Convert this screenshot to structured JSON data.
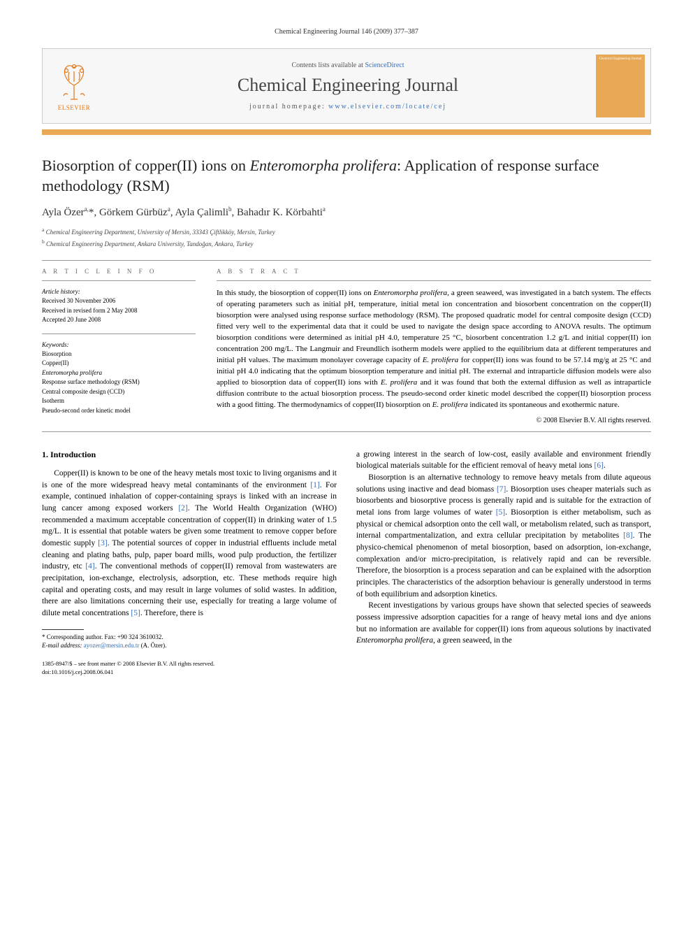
{
  "running_header": "Chemical Engineering Journal 146 (2009) 377–387",
  "header": {
    "contents_prefix": "Contents lists available at ",
    "contents_link": "ScienceDirect",
    "journal_title": "Chemical Engineering Journal",
    "homepage_prefix": "journal homepage: ",
    "homepage_link": "www.elsevier.com/locate/cej",
    "publisher_label": "ELSEVIER",
    "cover_text": "Chemical Engineering Journal"
  },
  "title_html": "Biosorption of copper(II) ions on <em>Enteromorpha prolifera</em>: Application of response surface methodology (RSM)",
  "authors_html": "Ayla Özer<sup>a,</sup>*, Görkem Gürbüz<sup>a</sup>, Ayla Çalimli<sup>b</sup>, Bahadır K. Körbahti<sup>a</sup>",
  "affiliations": [
    {
      "sup": "a",
      "text": "Chemical Engineering Department, University of Mersin, 33343 Çiftlikköy, Mersin, Turkey"
    },
    {
      "sup": "b",
      "text": "Chemical Engineering Department, Ankara University, Tandoğan, Ankara, Turkey"
    }
  ],
  "article_info": {
    "heading": "A R T I C L E  I N F O",
    "history_heading": "Article history:",
    "history": [
      "Received 30 November 2006",
      "Received in revised form 2 May 2008",
      "Accepted 20 June 2008"
    ],
    "keywords_heading": "Keywords:",
    "keywords": [
      "Biosorption",
      "Copper(II)",
      "Enteromorpha prolifera",
      "Response surface methodology (RSM)",
      "Central composite design (CCD)",
      "Isotherm",
      "Pseudo-second order kinetic model"
    ]
  },
  "abstract": {
    "heading": "A B S T R A C T",
    "text_html": "In this study, the biosorption of copper(II) ions on <em>Enteromorpha prolifera</em>, a green seaweed, was investigated in a batch system. The effects of operating parameters such as initial pH, temperature, initial metal ion concentration and biosorbent concentration on the copper(II) biosorption were analysed using response surface methodology (RSM). The proposed quadratic model for central composite design (CCD) fitted very well to the experimental data that it could be used to navigate the design space according to ANOVA results. The optimum biosorption conditions were determined as initial pH 4.0, temperature 25 °C, biosorbent concentration 1.2 g/L and initial copper(II) ion concentration 200 mg/L. The Langmuir and Freundlich isotherm models were applied to the equilibrium data at different temperatures and initial pH values. The maximum monolayer coverage capacity of <em>E. prolifera</em> for copper(II) ions was found to be 57.14 mg/g at 25 °C and initial pH 4.0 indicating that the optimum biosorption temperature and initial pH. The external and intraparticle diffusion models were also applied to biosorption data of copper(II) ions with <em>E. prolifera</em> and it was found that both the external diffusion as well as intraparticle diffusion contribute to the actual biosorption process. The pseudo-second order kinetic model described the copper(II) biosorption process with a good fitting. The thermodynamics of copper(II) biosorption on <em>E. prolifera</em> indicated its spontaneous and exothermic nature.",
    "copyright": "© 2008 Elsevier B.V. All rights reserved."
  },
  "body": {
    "section_number": "1.",
    "section_title": "Introduction",
    "col1_html": "Copper(II) is known to be one of the heavy metals most toxic to living organisms and it is one of the more widespread heavy metal contaminants of the environment <a class='ref-link' data-name='citation-link' data-interactable='true'>[1]</a>. For example, continued inhalation of copper-containing sprays is linked with an increase in lung cancer among exposed workers <a class='ref-link' data-name='citation-link' data-interactable='true'>[2]</a>. The World Health Organization (WHO) recommended a maximum acceptable concentration of copper(II) in drinking water of 1.5 mg/L. It is essential that potable waters be given some treatment to remove copper before domestic supply <a class='ref-link' data-name='citation-link' data-interactable='true'>[3]</a>. The potential sources of copper in industrial effluents include metal cleaning and plating baths, pulp, paper board mills, wood pulp production, the fertilizer industry, etc <a class='ref-link' data-name='citation-link' data-interactable='true'>[4]</a>. The conventional methods of copper(II) removal from wastewaters are precipitation, ion-exchange, electrolysis, adsorption, etc. These methods require high capital and operating costs, and may result in large volumes of solid wastes. In addition, there are also limitations concerning their use, especially for treating a large volume of dilute metal concentrations <a class='ref-link' data-name='citation-link' data-interactable='true'>[5]</a>. Therefore, there is",
    "col2_p1_html": "a growing interest in the search of low-cost, easily available and environment friendly biological materials suitable for the efficient removal of heavy metal ions <a class='ref-link' data-name='citation-link' data-interactable='true'>[6]</a>.",
    "col2_p2_html": "Biosorption is an alternative technology to remove heavy metals from dilute aqueous solutions using inactive and dead biomass <a class='ref-link' data-name='citation-link' data-interactable='true'>[7]</a>. Biosorption uses cheaper materials such as biosorbents and biosorptive process is generally rapid and is suitable for the extraction of metal ions from large volumes of water <a class='ref-link' data-name='citation-link' data-interactable='true'>[5]</a>. Biosorption is either metabolism, such as physical or chemical adsorption onto the cell wall, or metabolism related, such as transport, internal compartmentalization, and extra cellular precipitation by metabolites <a class='ref-link' data-name='citation-link' data-interactable='true'>[8]</a>. The physico-chemical phenomenon of metal biosorption, based on adsorption, ion-exchange, complexation and/or micro-precipitation, is relatively rapid and can be reversible. Therefore, the biosorption is a process separation and can be explained with the adsorption principles. The characteristics of the adsorption behaviour is generally understood in terms of both equilibrium and adsorption kinetics.",
    "col2_p3_html": "Recent investigations by various groups have shown that selected species of seaweeds possess impressive adsorption capacities for a range of heavy metal ions and dye anions but no information are available for copper(II) ions from aqueous solutions by inactivated <em>Enteromorpha prolifera</em>, a green seaweed, in the"
  },
  "footnote": {
    "corr": "* Corresponding author. Fax: +90 324 3610032.",
    "email_label": "E-mail address: ",
    "email": "ayozer@mersin.edu.tr",
    "email_suffix": " (A. Özer)."
  },
  "footer": {
    "line1": "1385-8947/$ – see front matter © 2008 Elsevier B.V. All rights reserved.",
    "line2": "doi:10.1016/j.cej.2008.06.041"
  },
  "colors": {
    "orange": "#e8a855",
    "elsevier_orange": "#e67817",
    "link_blue": "#3a6fb7",
    "border_gray": "#cccccc",
    "bg_gray": "#f7f7f7"
  }
}
